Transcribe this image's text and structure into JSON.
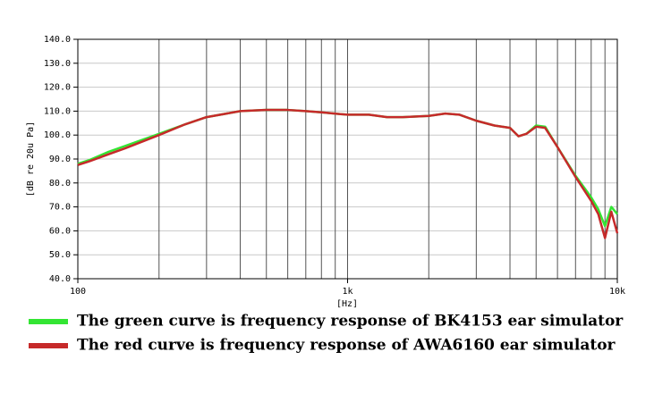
{
  "chart_data": {
    "type": "line",
    "xlabel": "[Hz]",
    "ylabel": "[dB re 20u Pa]",
    "xscale": "log",
    "xlim": [
      100,
      10000
    ],
    "xticks": [
      100,
      {
        "value": 1000,
        "label": "1k"
      },
      {
        "value": 10000,
        "label": "10k"
      }
    ],
    "xgrid": [
      200,
      300,
      400,
      500,
      600,
      700,
      800,
      900,
      2000,
      3000,
      4000,
      5000,
      6000,
      7000,
      8000,
      9000
    ],
    "ylim": [
      40,
      140
    ],
    "yticks": [
      {
        "value": 40,
        "label": "40.0"
      },
      {
        "value": 50,
        "label": "50.0"
      },
      {
        "value": 60,
        "label": "60.0"
      },
      {
        "value": 70,
        "label": "70.0"
      },
      {
        "value": 80,
        "label": "80.0"
      },
      {
        "value": 90,
        "label": "90.0"
      },
      {
        "value": 100,
        "label": "100.0"
      },
      {
        "value": 110,
        "label": "110.0"
      },
      {
        "value": 120,
        "label": "120.0"
      },
      {
        "value": 130,
        "label": "130.0"
      },
      {
        "value": 140,
        "label": "140.0"
      }
    ],
    "grid": true,
    "x": [
      100,
      110,
      130,
      150,
      200,
      250,
      300,
      400,
      500,
      600,
      700,
      800,
      1000,
      1200,
      1400,
      1600,
      2000,
      2300,
      2600,
      3000,
      3500,
      4000,
      4300,
      4600,
      5000,
      5400,
      6000,
      7000,
      8000,
      8500,
      9000,
      9500,
      10000
    ],
    "series": [
      {
        "name": "The green curve is frequency response of BK4153 ear simulator",
        "color": "#33e533",
        "values": [
          88,
          89.5,
          93,
          95.5,
          100.5,
          104.5,
          107.5,
          110,
          110.5,
          110.5,
          110,
          109.5,
          108.5,
          108.5,
          107.5,
          107.5,
          108,
          109,
          108.5,
          106,
          104,
          103,
          99.5,
          100.5,
          104,
          103.5,
          95,
          83,
          74,
          69,
          62,
          70,
          67
        ]
      },
      {
        "name": "The red curve is frequency response of AWA6160 ear simulator",
        "color": "#c62a2a",
        "values": [
          87.5,
          89,
          92,
          94.5,
          100,
          104.5,
          107.5,
          110,
          110.5,
          110.5,
          110,
          109.5,
          108.5,
          108.5,
          107.5,
          107.5,
          108,
          109,
          108.5,
          106,
          104,
          103,
          99.5,
          100.5,
          103.5,
          103,
          95,
          82.5,
          72.5,
          67,
          57,
          68,
          59
        ]
      }
    ]
  }
}
